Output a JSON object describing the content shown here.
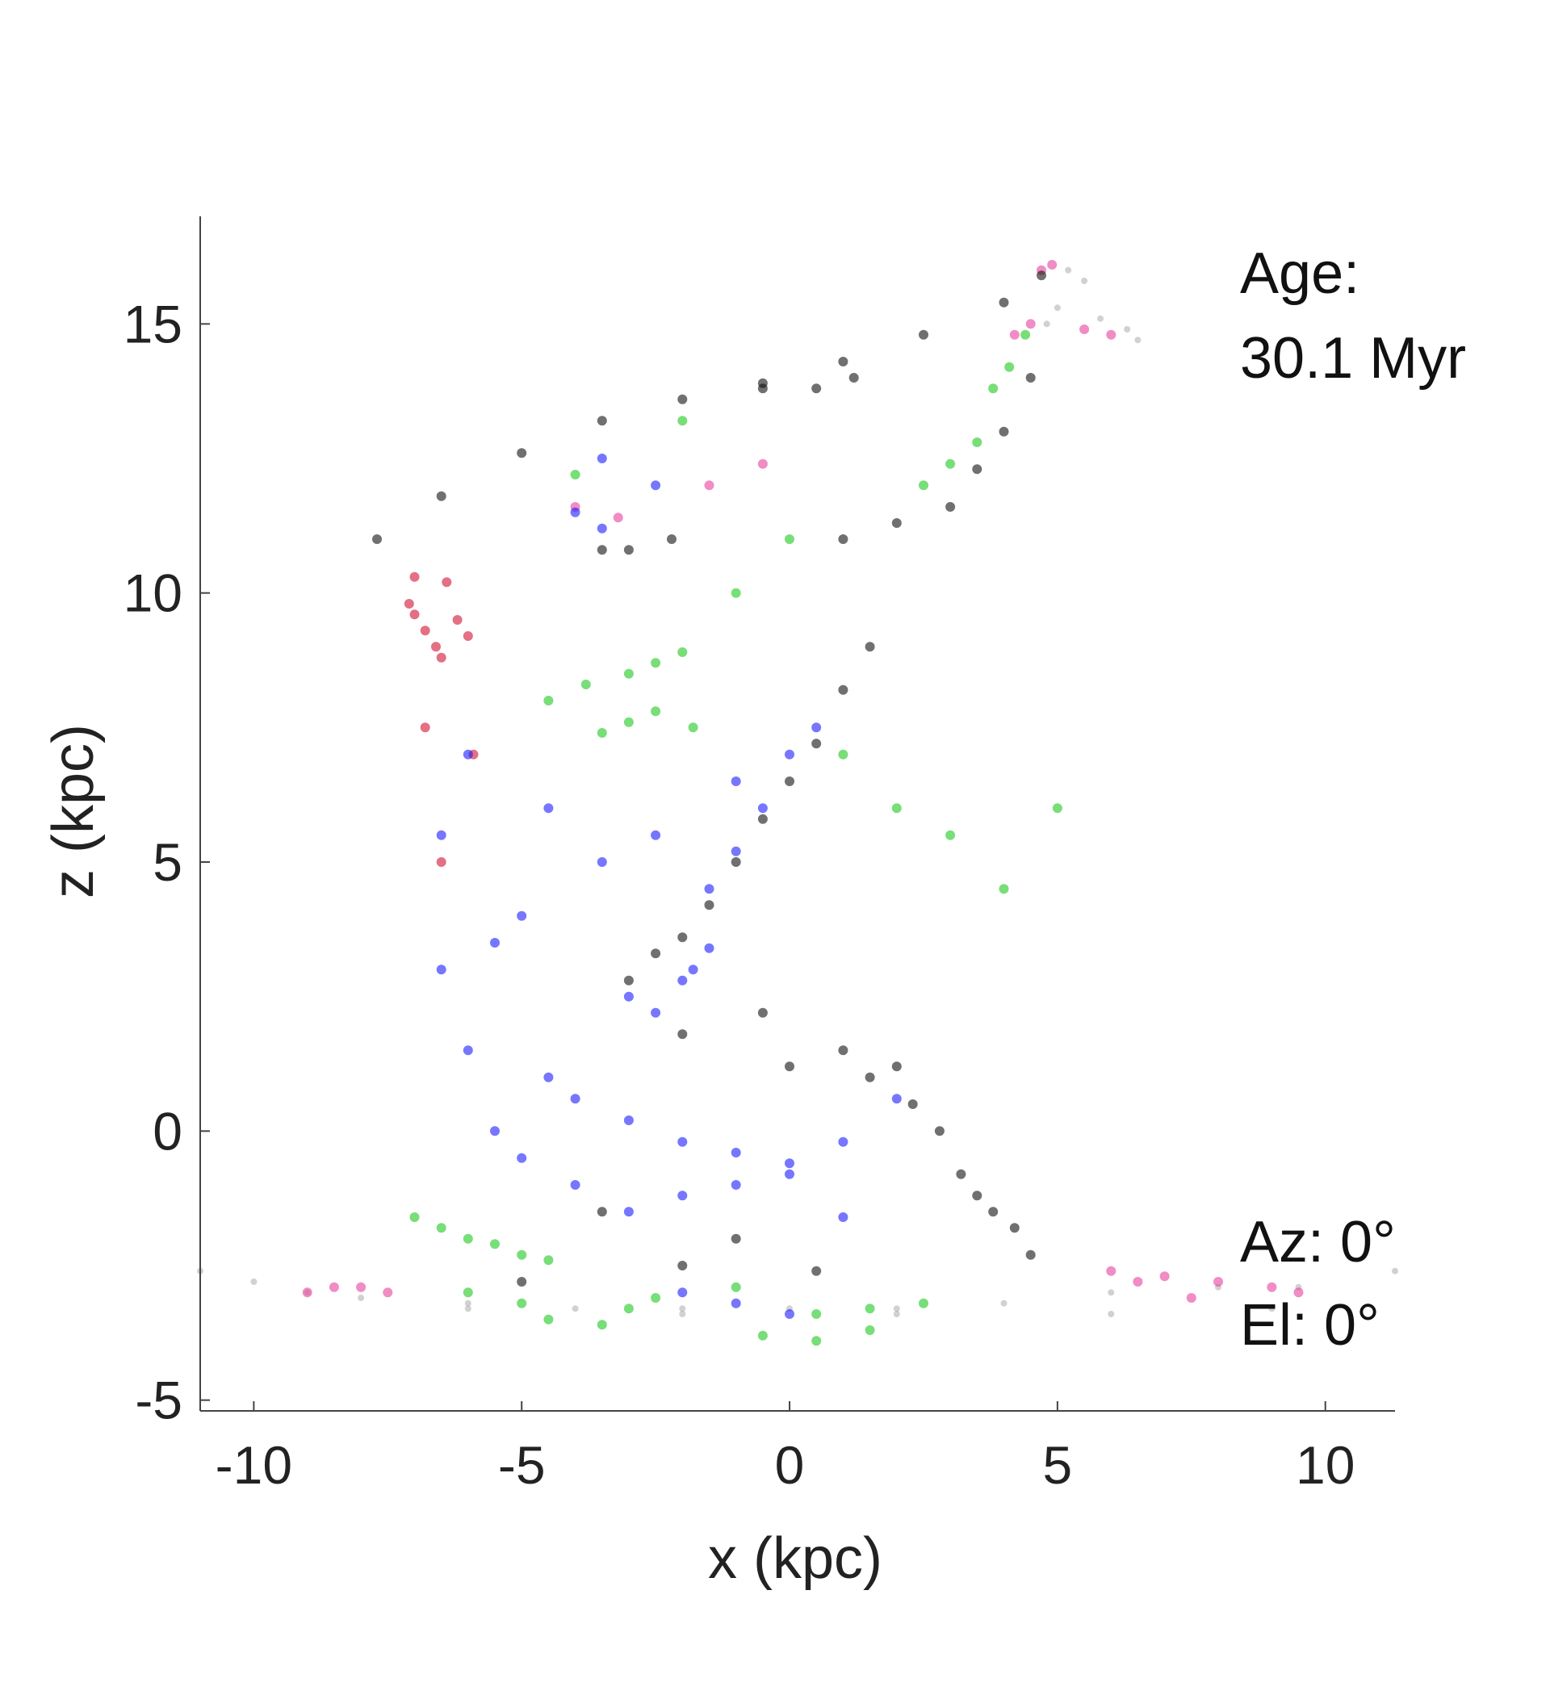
{
  "chart_data": {
    "type": "scatter",
    "title": "",
    "xlabel": "x (kpc)",
    "ylabel": "z (kpc)",
    "xlim": [
      -11,
      11.3
    ],
    "ylim": [
      -5.2,
      17
    ],
    "xticks": [
      -10,
      -5,
      0,
      5,
      10
    ],
    "yticks": [
      -5,
      0,
      5,
      10,
      15
    ],
    "xtick_labels": [
      "-10",
      "-5",
      "0",
      "5",
      "10"
    ],
    "ytick_labels": [
      "-5",
      "0",
      "5",
      "10",
      "15"
    ],
    "grid": false,
    "legend": "none",
    "annotations": {
      "age_label": "Age:",
      "age_value": "30.1 Myr",
      "azimuth": "Az: 0°",
      "elevation": "El: 0°"
    },
    "series": [
      {
        "color": "#9a9a9a",
        "x": [
          -11.0,
          -10.0,
          -8.0,
          -6.0,
          -4.0,
          -2.0,
          0.0,
          2.0,
          4.0,
          6.0,
          8.0,
          9.5,
          11.3,
          9.0,
          6.0,
          2.0,
          -2.0,
          -6.0,
          -9.0,
          5.5,
          6.5,
          5.0,
          4.8,
          5.8,
          6.3,
          5.2
        ],
        "y": [
          -2.6,
          -2.8,
          -3.1,
          -3.2,
          -3.3,
          -3.3,
          -3.3,
          -3.3,
          -3.2,
          -3.0,
          -2.9,
          -2.9,
          -2.6,
          -3.3,
          -3.4,
          -3.4,
          -3.4,
          -3.3,
          -3.0,
          15.8,
          14.7,
          15.3,
          15.0,
          15.1,
          14.9,
          16.0
        ]
      },
      {
        "color": "#e8409e",
        "x": [
          -9.0,
          -8.5,
          -8.0,
          -7.5,
          6.0,
          7.0,
          8.0,
          9.0,
          9.5,
          7.5,
          6.5,
          4.7,
          4.9,
          5.5,
          6.0,
          4.2,
          4.5,
          -4.0,
          -3.2,
          -1.5,
          -0.5
        ],
        "y": [
          -3.0,
          -2.9,
          -2.9,
          -3.0,
          -2.6,
          -2.7,
          -2.8,
          -2.9,
          -3.0,
          -3.1,
          -2.8,
          16.0,
          16.1,
          14.9,
          14.8,
          14.8,
          15.0,
          11.6,
          11.4,
          12.0,
          12.4
        ]
      },
      {
        "color": "#d01030",
        "x": [
          -7.1,
          -7.0,
          -6.8,
          -6.6,
          -6.5,
          -6.2,
          -6.0,
          -7.0,
          -6.4,
          -6.8,
          -5.9,
          -6.5
        ],
        "y": [
          9.8,
          9.6,
          9.3,
          9.0,
          8.8,
          9.5,
          9.2,
          10.3,
          10.2,
          7.5,
          7.0,
          5.0
        ]
      },
      {
        "color": "#111111",
        "x": [
          -7.7,
          -6.5,
          -5.0,
          -3.5,
          -2.0,
          -0.5,
          1.0,
          2.5,
          4.0,
          4.7,
          -0.5,
          0.5,
          1.2,
          -3.5,
          -3.0,
          -2.2,
          1.0,
          2.0,
          3.0,
          3.5,
          4.0,
          4.5,
          1.5,
          1.0,
          0.5,
          0.0,
          -0.5,
          -1.0,
          -1.5,
          -2.0,
          -2.5,
          -3.0,
          -0.5,
          1.0,
          2.0,
          2.3,
          -2.0,
          0.0,
          1.5,
          2.8,
          3.2,
          3.5,
          3.8,
          4.2,
          4.5,
          -3.5,
          -5.0,
          -2.0,
          -1.0,
          0.5
        ],
        "y": [
          11.0,
          11.8,
          12.6,
          13.2,
          13.6,
          13.9,
          14.3,
          14.8,
          15.4,
          15.9,
          13.8,
          13.8,
          14.0,
          10.8,
          10.8,
          11.0,
          11.0,
          11.3,
          11.6,
          12.3,
          13.0,
          14.0,
          9.0,
          8.2,
          7.2,
          6.5,
          5.8,
          5.0,
          4.2,
          3.6,
          3.3,
          2.8,
          2.2,
          1.5,
          1.2,
          0.5,
          1.8,
          1.2,
          1.0,
          0.0,
          -0.8,
          -1.2,
          -1.5,
          -1.8,
          -2.3,
          -1.5,
          -2.8,
          -2.5,
          -2.0,
          -2.6
        ]
      },
      {
        "color": "#1a1aff",
        "x": [
          -3.0,
          -2.5,
          -2.0,
          -1.8,
          -1.5,
          -4.5,
          -4.0,
          -3.0,
          -2.0,
          -1.0,
          0.0,
          1.0,
          2.0,
          -5.5,
          -5.0,
          -4.0,
          -3.0,
          -2.0,
          -1.0,
          0.0,
          1.0,
          -6.0,
          -5.5,
          -4.5,
          -3.5,
          -2.5,
          -1.0,
          0.5,
          -6.0,
          -5.0,
          -6.5,
          -1.5,
          -1.0,
          -0.5,
          0.0,
          -2.5,
          -3.5,
          -4.0,
          -3.5,
          -6.5,
          -2.0,
          -1.0,
          0.0
        ],
        "y": [
          2.5,
          2.2,
          2.8,
          3.0,
          3.4,
          1.0,
          0.6,
          0.2,
          -0.2,
          -0.4,
          -0.6,
          -0.2,
          0.6,
          0.0,
          -0.5,
          -1.0,
          -1.5,
          -1.2,
          -1.0,
          -0.8,
          -1.6,
          1.5,
          3.5,
          6.0,
          5.0,
          5.5,
          6.5,
          7.5,
          7.0,
          4.0,
          3.0,
          4.5,
          5.2,
          6.0,
          7.0,
          12.0,
          12.5,
          11.5,
          11.2,
          5.5,
          -3.0,
          -3.2,
          -3.4
        ]
      },
      {
        "color": "#1ec81e",
        "x": [
          -4.5,
          -3.8,
          -3.0,
          -2.5,
          -2.0,
          -1.8,
          -3.5,
          -3.0,
          -2.5,
          3.8,
          4.1,
          4.4,
          2.5,
          3.0,
          3.5,
          -7.0,
          -6.5,
          -6.0,
          -5.5,
          -5.0,
          -4.5,
          -6.0,
          -5.0,
          -3.0,
          0.5,
          1.5,
          2.5,
          -0.5,
          0.5,
          1.5,
          -2.0,
          -4.0,
          1.0,
          2.0,
          3.0,
          4.0,
          5.0,
          -1.0,
          0.0,
          -4.5,
          -3.5,
          -2.5,
          -1.0
        ],
        "y": [
          8.0,
          8.3,
          8.5,
          8.7,
          8.9,
          7.5,
          7.4,
          7.6,
          7.8,
          13.8,
          14.2,
          14.8,
          12.0,
          12.4,
          12.8,
          -1.6,
          -1.8,
          -2.0,
          -2.1,
          -2.3,
          -2.4,
          -3.0,
          -3.2,
          -3.3,
          -3.4,
          -3.3,
          -3.2,
          -3.8,
          -3.9,
          -3.7,
          13.2,
          12.2,
          7.0,
          6.0,
          5.5,
          4.5,
          6.0,
          10.0,
          11.0,
          -3.5,
          -3.6,
          -3.1,
          -2.9
        ]
      }
    ]
  }
}
